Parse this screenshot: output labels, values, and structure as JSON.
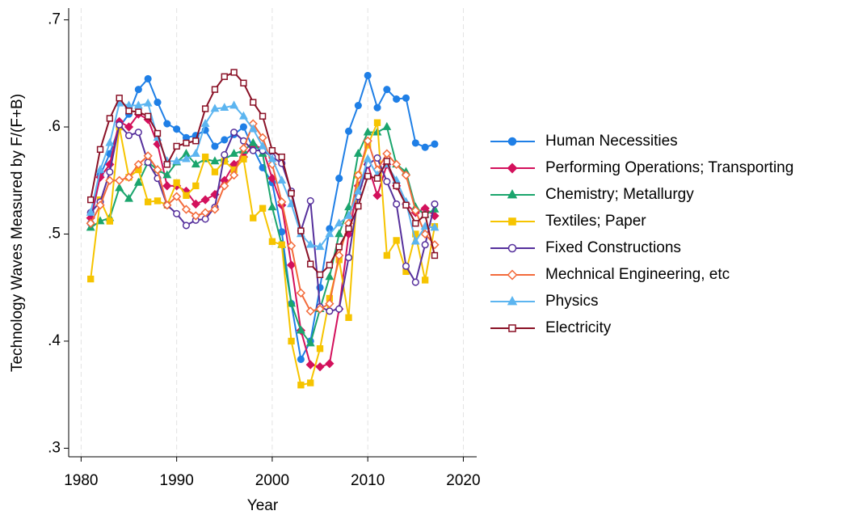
{
  "chart_data": {
    "type": "line",
    "x_label": "Year",
    "y_label": "Technology Waves Measured by F/(F+B)",
    "x": [
      1981,
      1982,
      1983,
      1984,
      1985,
      1986,
      1987,
      1988,
      1989,
      1990,
      1991,
      1992,
      1993,
      1994,
      1995,
      1996,
      1997,
      1998,
      1999,
      2000,
      2001,
      2002,
      2003,
      2004,
      2005,
      2006,
      2007,
      2008,
      2009,
      2010,
      2011,
      2012,
      2013,
      2014,
      2015,
      2016,
      2017
    ],
    "xlim": [
      1978.7,
      2021.4
    ],
    "xticks": [
      1980,
      1990,
      2000,
      2010,
      2020
    ],
    "ylim": [
      0.292,
      0.711
    ],
    "yticks": [
      {
        "value": 0.3,
        "label": ".3"
      },
      {
        "value": 0.4,
        "label": ".4"
      },
      {
        "value": 0.5,
        "label": ".5"
      },
      {
        "value": 0.6,
        "label": ".6"
      },
      {
        "value": 0.7,
        "label": ".7"
      }
    ],
    "grid": "x",
    "legend": "right",
    "series": [
      {
        "name": "Human Necessities",
        "color": "#1f7fe6",
        "marker": "circle",
        "hollow": false,
        "values": [
          0.51,
          0.555,
          0.575,
          0.6,
          0.612,
          0.635,
          0.645,
          0.623,
          0.603,
          0.598,
          0.59,
          0.592,
          0.597,
          0.582,
          0.588,
          0.593,
          0.6,
          0.58,
          0.562,
          0.548,
          0.502,
          0.435,
          0.383,
          0.4,
          0.45,
          0.505,
          0.552,
          0.596,
          0.62,
          0.648,
          0.618,
          0.635,
          0.626,
          0.627,
          0.585,
          0.581,
          0.584
        ]
      },
      {
        "name": "Performing Operations; Transporting",
        "color": "#d3115c",
        "marker": "diamond",
        "hollow": false,
        "values": [
          0.515,
          0.553,
          0.565,
          0.605,
          0.6,
          0.612,
          0.607,
          0.584,
          0.545,
          0.545,
          0.54,
          0.528,
          0.532,
          0.537,
          0.55,
          0.565,
          0.572,
          0.583,
          0.58,
          0.552,
          0.527,
          0.471,
          0.41,
          0.378,
          0.376,
          0.379,
          0.43,
          0.5,
          0.545,
          0.565,
          0.536,
          0.565,
          0.545,
          0.528,
          0.52,
          0.524,
          0.517
        ]
      },
      {
        "name": "Chemistry; Metallurgy",
        "color": "#1ba56d",
        "marker": "triangle",
        "hollow": false,
        "values": [
          0.506,
          0.512,
          0.515,
          0.543,
          0.533,
          0.548,
          0.567,
          0.56,
          0.555,
          0.567,
          0.575,
          0.565,
          0.57,
          0.568,
          0.57,
          0.575,
          0.578,
          0.585,
          0.575,
          0.525,
          0.49,
          0.435,
          0.41,
          0.398,
          0.43,
          0.46,
          0.5,
          0.525,
          0.575,
          0.595,
          0.595,
          0.6,
          0.565,
          0.558,
          0.525,
          0.518,
          0.523
        ]
      },
      {
        "name": "Textiles; Paper",
        "color": "#f6c400",
        "marker": "square",
        "hollow": false,
        "values": [
          0.458,
          0.532,
          0.512,
          0.6,
          0.553,
          0.56,
          0.53,
          0.531,
          0.527,
          0.548,
          0.536,
          0.545,
          0.572,
          0.558,
          0.568,
          0.56,
          0.57,
          0.515,
          0.524,
          0.493,
          0.49,
          0.4,
          0.359,
          0.361,
          0.393,
          0.44,
          0.476,
          0.422,
          0.555,
          0.583,
          0.604,
          0.48,
          0.494,
          0.465,
          0.5,
          0.457,
          0.507
        ]
      },
      {
        "name": "Fixed Constructions",
        "color": "#56309c",
        "marker": "circle",
        "hollow": true,
        "values": [
          0.52,
          0.53,
          0.558,
          0.602,
          0.592,
          0.595,
          0.567,
          0.552,
          0.527,
          0.519,
          0.508,
          0.513,
          0.514,
          0.525,
          0.574,
          0.595,
          0.587,
          0.578,
          0.578,
          0.572,
          0.566,
          0.54,
          0.503,
          0.531,
          0.432,
          0.428,
          0.43,
          0.478,
          0.535,
          0.565,
          0.571,
          0.549,
          0.528,
          0.47,
          0.455,
          0.49,
          0.528
        ]
      },
      {
        "name": "Mechnical Engineering, etc",
        "color": "#f36b3b",
        "marker": "diamond",
        "hollow": true,
        "values": [
          0.51,
          0.527,
          0.55,
          0.55,
          0.553,
          0.565,
          0.573,
          0.56,
          0.527,
          0.535,
          0.523,
          0.517,
          0.52,
          0.523,
          0.545,
          0.555,
          0.58,
          0.603,
          0.59,
          0.565,
          0.53,
          0.489,
          0.445,
          0.428,
          0.43,
          0.435,
          0.48,
          0.51,
          0.555,
          0.587,
          0.56,
          0.575,
          0.565,
          0.555,
          0.522,
          0.5,
          0.49
        ]
      },
      {
        "name": "Physics",
        "color": "#5cb5f0",
        "marker": "triangle",
        "hollow": false,
        "values": [
          0.52,
          0.56,
          0.585,
          0.622,
          0.62,
          0.62,
          0.622,
          0.59,
          0.568,
          0.568,
          0.57,
          0.575,
          0.603,
          0.617,
          0.618,
          0.62,
          0.61,
          0.598,
          0.582,
          0.57,
          0.55,
          0.528,
          0.5,
          0.49,
          0.488,
          0.5,
          0.51,
          0.517,
          0.54,
          0.57,
          0.555,
          0.565,
          0.55,
          0.53,
          0.493,
          0.507,
          0.506
        ]
      },
      {
        "name": "Electricity",
        "color": "#8a1126",
        "marker": "square",
        "hollow": true,
        "values": [
          0.532,
          0.579,
          0.608,
          0.627,
          0.615,
          0.614,
          0.61,
          0.594,
          0.565,
          0.582,
          0.585,
          0.587,
          0.617,
          0.635,
          0.647,
          0.651,
          0.641,
          0.623,
          0.61,
          0.578,
          0.572,
          0.538,
          0.503,
          0.472,
          0.462,
          0.471,
          0.488,
          0.505,
          0.526,
          0.554,
          0.552,
          0.568,
          0.545,
          0.527,
          0.51,
          0.518,
          0.48
        ]
      }
    ]
  }
}
